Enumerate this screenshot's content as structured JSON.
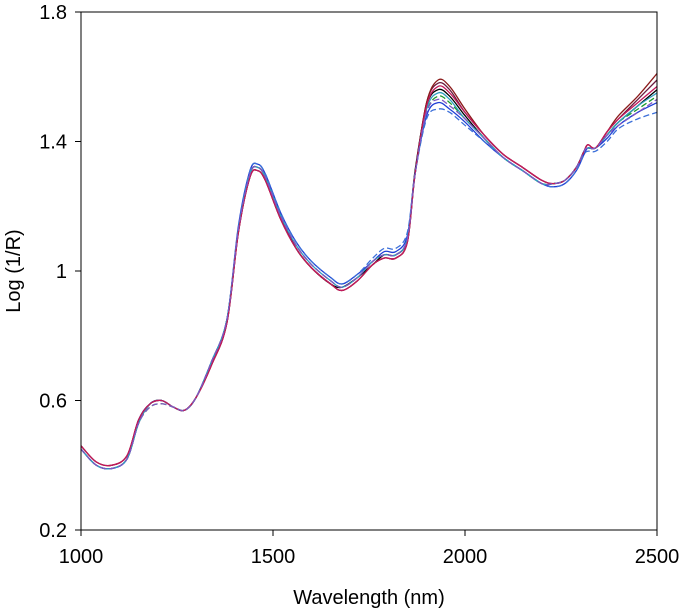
{
  "chart_data": {
    "type": "line",
    "title": "",
    "xlabel": "Wavelength (nm)",
    "ylabel": "Log (1/R)",
    "xlim": [
      1000,
      2500
    ],
    "ylim": [
      0.2,
      1.8
    ],
    "xticks": [
      1000,
      1500,
      2000,
      2500
    ],
    "xtick_labels": [
      "1000",
      "1500",
      "2000",
      "2500"
    ],
    "yticks": [
      0.2,
      0.6,
      1.0,
      1.4,
      1.8
    ],
    "ytick_labels": [
      "0.2",
      "0.6",
      "1",
      "1.4",
      "1.8"
    ],
    "grid": false,
    "legend": "none",
    "x": [
      1000,
      1040,
      1080,
      1120,
      1150,
      1180,
      1210,
      1240,
      1270,
      1300,
      1340,
      1380,
      1410,
      1440,
      1460,
      1480,
      1520,
      1560,
      1600,
      1650,
      1680,
      1720,
      1760,
      1790,
      1820,
      1850,
      1870,
      1900,
      1930,
      1960,
      2000,
      2050,
      2100,
      2150,
      2200,
      2230,
      2260,
      2290,
      2310,
      2320,
      2340,
      2370,
      2400,
      2450,
      2500
    ],
    "series": [
      {
        "values": [
          0.46,
          0.41,
          0.4,
          0.43,
          0.54,
          0.59,
          0.6,
          0.58,
          0.57,
          0.61,
          0.71,
          0.84,
          1.12,
          1.29,
          1.31,
          1.28,
          1.16,
          1.07,
          1.01,
          0.96,
          0.94,
          0.97,
          1.02,
          1.04,
          1.04,
          1.09,
          1.3,
          1.52,
          1.58,
          1.56,
          1.49,
          1.42,
          1.36,
          1.32,
          1.28,
          1.27,
          1.28,
          1.32,
          1.37,
          1.39,
          1.38,
          1.43,
          1.47,
          1.53,
          1.59
        ],
        "color": "#6a1b3f"
      },
      {
        "values": [
          0.45,
          0.4,
          0.39,
          0.42,
          0.53,
          0.59,
          0.6,
          0.58,
          0.57,
          0.61,
          0.72,
          0.85,
          1.13,
          1.3,
          1.32,
          1.29,
          1.17,
          1.07,
          1.01,
          0.96,
          0.95,
          0.98,
          1.02,
          1.05,
          1.05,
          1.1,
          1.31,
          1.51,
          1.56,
          1.54,
          1.48,
          1.41,
          1.35,
          1.31,
          1.27,
          1.27,
          1.28,
          1.32,
          1.37,
          1.38,
          1.38,
          1.42,
          1.46,
          1.51,
          1.56
        ],
        "color": "#000000"
      },
      {
        "values": [
          0.45,
          0.4,
          0.39,
          0.42,
          0.53,
          0.58,
          0.59,
          0.58,
          0.57,
          0.61,
          0.72,
          0.85,
          1.13,
          1.3,
          1.32,
          1.29,
          1.17,
          1.08,
          1.02,
          0.97,
          0.95,
          0.98,
          1.03,
          1.05,
          1.05,
          1.1,
          1.3,
          1.49,
          1.54,
          1.52,
          1.47,
          1.41,
          1.35,
          1.31,
          1.27,
          1.27,
          1.28,
          1.32,
          1.37,
          1.38,
          1.38,
          1.42,
          1.46,
          1.5,
          1.54
        ],
        "color": "#1a9a2e"
      },
      {
        "values": [
          0.45,
          0.4,
          0.39,
          0.42,
          0.54,
          0.59,
          0.6,
          0.58,
          0.57,
          0.61,
          0.72,
          0.85,
          1.14,
          1.31,
          1.33,
          1.3,
          1.18,
          1.09,
          1.03,
          0.98,
          0.96,
          0.99,
          1.03,
          1.06,
          1.06,
          1.11,
          1.3,
          1.48,
          1.52,
          1.5,
          1.46,
          1.4,
          1.35,
          1.31,
          1.27,
          1.26,
          1.27,
          1.31,
          1.36,
          1.38,
          1.38,
          1.41,
          1.45,
          1.49,
          1.52
        ],
        "color": "#1f3fd6"
      },
      {
        "values": [
          0.46,
          0.41,
          0.4,
          0.43,
          0.54,
          0.59,
          0.6,
          0.58,
          0.57,
          0.61,
          0.71,
          0.84,
          1.12,
          1.29,
          1.31,
          1.28,
          1.16,
          1.07,
          1.01,
          0.96,
          0.94,
          0.97,
          1.02,
          1.04,
          1.04,
          1.09,
          1.3,
          1.52,
          1.59,
          1.57,
          1.5,
          1.42,
          1.36,
          1.32,
          1.28,
          1.27,
          1.28,
          1.32,
          1.37,
          1.39,
          1.38,
          1.43,
          1.48,
          1.54,
          1.61
        ],
        "color": "#8b1a1a"
      },
      {
        "values": [
          0.45,
          0.4,
          0.39,
          0.42,
          0.53,
          0.59,
          0.6,
          0.58,
          0.57,
          0.61,
          0.72,
          0.85,
          1.13,
          1.31,
          1.33,
          1.3,
          1.18,
          1.09,
          1.03,
          0.98,
          0.96,
          0.99,
          1.04,
          1.07,
          1.07,
          1.12,
          1.3,
          1.47,
          1.5,
          1.49,
          1.45,
          1.4,
          1.35,
          1.31,
          1.27,
          1.26,
          1.27,
          1.31,
          1.36,
          1.37,
          1.37,
          1.4,
          1.44,
          1.47,
          1.49
        ],
        "color": "#3b6fd9"
      },
      {
        "values": [
          0.45,
          0.4,
          0.39,
          0.42,
          0.53,
          0.59,
          0.6,
          0.58,
          0.57,
          0.61,
          0.72,
          0.85,
          1.13,
          1.3,
          1.32,
          1.29,
          1.17,
          1.08,
          1.02,
          0.97,
          0.95,
          0.98,
          1.03,
          1.05,
          1.05,
          1.1,
          1.3,
          1.5,
          1.55,
          1.53,
          1.47,
          1.41,
          1.35,
          1.31,
          1.27,
          1.27,
          1.28,
          1.32,
          1.37,
          1.38,
          1.38,
          1.42,
          1.46,
          1.51,
          1.55
        ],
        "color": "#2e9fbf"
      },
      {
        "values": [
          0.46,
          0.41,
          0.4,
          0.43,
          0.54,
          0.59,
          0.6,
          0.58,
          0.57,
          0.61,
          0.71,
          0.84,
          1.12,
          1.29,
          1.31,
          1.28,
          1.16,
          1.07,
          1.01,
          0.96,
          0.94,
          0.97,
          1.02,
          1.04,
          1.04,
          1.09,
          1.3,
          1.51,
          1.57,
          1.55,
          1.49,
          1.42,
          1.36,
          1.32,
          1.28,
          1.27,
          1.28,
          1.32,
          1.37,
          1.39,
          1.38,
          1.43,
          1.47,
          1.52,
          1.57
        ],
        "color": "#c2185b"
      },
      {
        "values": [
          0.45,
          0.4,
          0.39,
          0.42,
          0.53,
          0.58,
          0.59,
          0.58,
          0.57,
          0.61,
          0.72,
          0.85,
          1.13,
          1.3,
          1.32,
          1.29,
          1.17,
          1.08,
          1.02,
          0.97,
          0.95,
          0.98,
          1.03,
          1.05,
          1.05,
          1.1,
          1.3,
          1.49,
          1.53,
          1.51,
          1.47,
          1.41,
          1.35,
          1.31,
          1.27,
          1.27,
          1.28,
          1.32,
          1.37,
          1.38,
          1.38,
          1.42,
          1.45,
          1.49,
          1.53
        ],
        "color": "#7e57c2"
      }
    ]
  }
}
